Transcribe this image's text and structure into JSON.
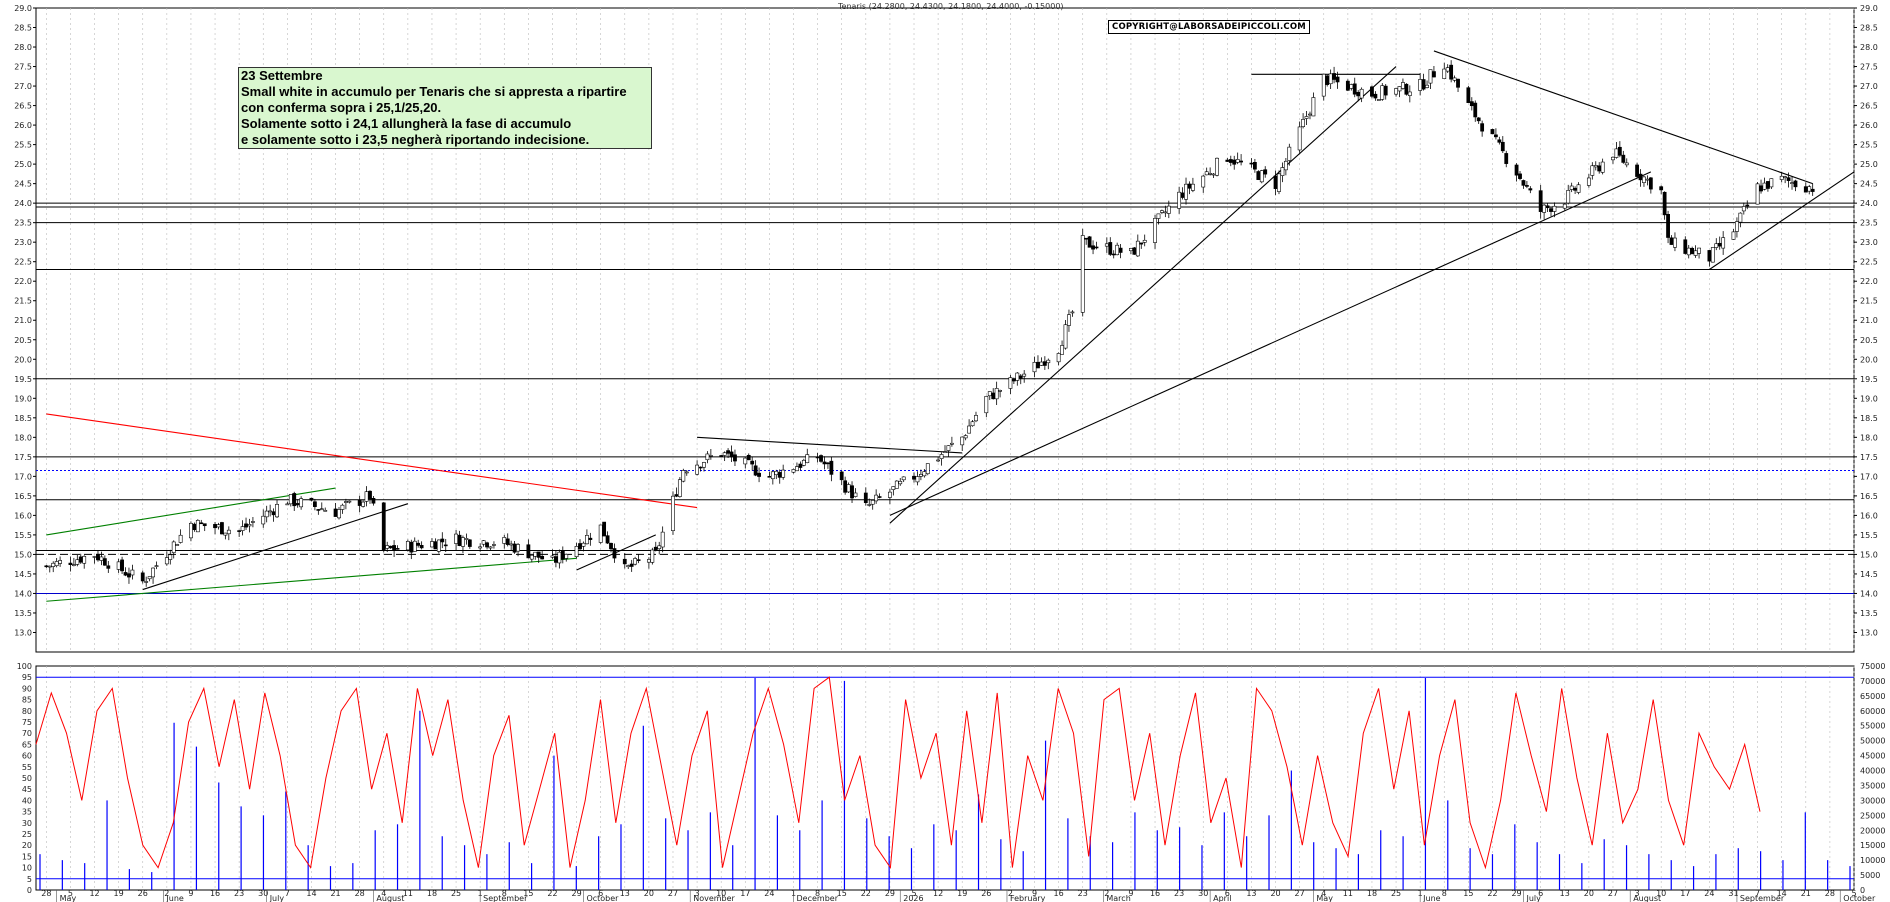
{
  "chart_data": [
    {
      "type": "candlestick",
      "header": "Tenaris (24.2800, 24.4300, 24.1800, 24.4000, -0.15000)",
      "copyright": "COPYRIGHT@LABORSADEIPICCOLI.COM",
      "annotation": [
        "23 Settembre",
        "Small white in accumulo per Tenaris che si appresta a ripartire",
        "con conferma sopra i 25,1/25,20.",
        "Solamente sotto i 24,1 allungherà la fase di accumulo",
        "e solamente sotto i 23,5 negherà riportando indecisione."
      ],
      "ylim": [
        12.5,
        29.0
      ],
      "yticks": [
        "29.0",
        "28.5",
        "28.0",
        "27.5",
        "27.0",
        "26.5",
        "26.0",
        "25.5",
        "25.0",
        "24.5",
        "24.0",
        "23.5",
        "23.0",
        "22.5",
        "22.0",
        "21.5",
        "21.0",
        "20.5",
        "20.0",
        "19.5",
        "19.0",
        "18.5",
        "18.0",
        "17.5",
        "17.0",
        "16.5",
        "16.0",
        "15.5",
        "15.0",
        "14.5",
        "14.0",
        "13.5",
        "13.0"
      ],
      "last": {
        "open": 24.28,
        "high": 24.43,
        "low": 24.18,
        "close": 24.4,
        "change": -0.15
      },
      "horizontal_levels": [
        24.0,
        23.9,
        23.5,
        22.3,
        19.5,
        17.5,
        16.4,
        15.1,
        14.0
      ],
      "dotted_level": 17.15,
      "dashed_level": 15.0,
      "price_path": [
        [
          "2025-04-28",
          14.7
        ],
        [
          "2025-05-12",
          15.0
        ],
        [
          "2025-05-26",
          14.3
        ],
        [
          "2025-06-09",
          15.8
        ],
        [
          "2025-06-23",
          15.6
        ],
        [
          "2025-07-07",
          16.4
        ],
        [
          "2025-07-21",
          16.1
        ],
        [
          "2025-07-31",
          16.5
        ],
        [
          "2025-08-04",
          15.1
        ],
        [
          "2025-08-25",
          15.4
        ],
        [
          "2025-09-08",
          15.3
        ],
        [
          "2025-09-22",
          14.8
        ],
        [
          "2025-10-06",
          15.7
        ],
        [
          "2025-10-13",
          14.6
        ],
        [
          "2025-10-22",
          15.0
        ],
        [
          "2025-10-30",
          17.2
        ],
        [
          "2025-11-10",
          17.6
        ],
        [
          "2025-11-24",
          17.0
        ],
        [
          "2025-12-08",
          17.5
        ],
        [
          "2025-12-22",
          16.2
        ],
        [
          "2026-01-05",
          17.0
        ],
        [
          "2026-01-19",
          18.0
        ],
        [
          "2026-01-26",
          19.0
        ],
        [
          "2026-02-09",
          19.8
        ],
        [
          "2026-02-16",
          20.3
        ],
        [
          "2026-02-20",
          21.2
        ],
        [
          "2026-02-23",
          23.0
        ],
        [
          "2026-03-09",
          22.7
        ],
        [
          "2026-03-23",
          24.2
        ],
        [
          "2026-04-06",
          25.2
        ],
        [
          "2026-04-20",
          24.5
        ],
        [
          "2026-05-04",
          27.2
        ],
        [
          "2026-05-18",
          26.8
        ],
        [
          "2026-06-01",
          27.0
        ],
        [
          "2026-06-08",
          27.6
        ],
        [
          "2026-06-15",
          26.5
        ],
        [
          "2026-06-29",
          24.8
        ],
        [
          "2026-07-06",
          23.8
        ],
        [
          "2026-07-13",
          24.1
        ],
        [
          "2026-07-27",
          25.3
        ],
        [
          "2026-08-10",
          24.3
        ],
        [
          "2026-08-12",
          23.0
        ],
        [
          "2026-08-24",
          22.6
        ],
        [
          "2026-08-31",
          23.3
        ],
        [
          "2026-09-07",
          24.4
        ],
        [
          "2026-09-14",
          24.6
        ],
        [
          "2026-09-23",
          24.4
        ]
      ],
      "trendlines": [
        {
          "color": "#ff0000",
          "from": [
            "2025-04-28",
            18.6
          ],
          "to": [
            "2025-11-03",
            16.2
          ]
        },
        {
          "color": "#008000",
          "from": [
            "2025-04-28",
            15.5
          ],
          "to": [
            "2025-07-21",
            16.7
          ]
        },
        {
          "color": "#008000",
          "from": [
            "2025-04-28",
            13.8
          ],
          "to": [
            "2025-09-29",
            14.9
          ]
        },
        {
          "color": "#000000",
          "from": [
            "2025-05-26",
            14.1
          ],
          "to": [
            "2025-08-11",
            16.3
          ]
        },
        {
          "color": "#000000",
          "from": [
            "2025-09-29",
            14.6
          ],
          "to": [
            "2025-10-22",
            15.5
          ]
        },
        {
          "color": "#000000",
          "from": [
            "2025-11-03",
            18.0
          ],
          "to": [
            "2026-01-19",
            17.6
          ]
        },
        {
          "color": "#000000",
          "from": [
            "2025-12-29",
            15.8
          ],
          "to": [
            "2026-05-25",
            27.5
          ]
        },
        {
          "color": "#000000",
          "from": [
            "2025-12-29",
            16.0
          ],
          "to": [
            "2026-08-07",
            24.8
          ]
        },
        {
          "color": "#000000",
          "from": [
            "2026-04-13",
            27.3
          ],
          "to": [
            "2026-06-01",
            27.3
          ]
        },
        {
          "color": "#000000",
          "from": [
            "2026-06-05",
            27.9
          ],
          "to": [
            "2026-09-23",
            24.5
          ]
        },
        {
          "color": "#000000",
          "from": [
            "2026-08-24",
            22.3
          ],
          "to": [
            "2026-10-05",
            24.8
          ]
        }
      ],
      "x_day_labels": [
        "28",
        "5",
        "12",
        "19",
        "26",
        "2",
        "9",
        "16",
        "23",
        "30",
        "7",
        "14",
        "21",
        "28",
        "4",
        "11",
        "18",
        "25",
        "1",
        "8",
        "15",
        "22",
        "29",
        "6",
        "13",
        "20",
        "27",
        "3",
        "10",
        "17",
        "24",
        "1",
        "8",
        "15",
        "22",
        "29",
        "5",
        "12",
        "19",
        "26",
        "2",
        "9",
        "16",
        "23",
        "2",
        "9",
        "16",
        "23",
        "30",
        "6",
        "13",
        "20",
        "27",
        "4",
        "11",
        "18",
        "25",
        "1",
        "8",
        "15",
        "22",
        "29",
        "6",
        "13",
        "20",
        "27",
        "3",
        "10",
        "17",
        "24",
        "31",
        "7",
        "14",
        "21",
        "28",
        "5"
      ],
      "x_month_labels": [
        "May",
        "June",
        "July",
        "August",
        "September",
        "October",
        "November",
        "December",
        "2026",
        "February",
        "March",
        "April",
        "May",
        "June",
        "July",
        "August",
        "September",
        "October"
      ]
    },
    {
      "type": "bar+line",
      "y_left_ticks": [
        "100",
        "95",
        "90",
        "85",
        "80",
        "75",
        "70",
        "65",
        "60",
        "55",
        "50",
        "45",
        "40",
        "35",
        "30",
        "25",
        "20",
        "15",
        "10",
        "5",
        "0"
      ],
      "y_right_ticks": [
        "75000",
        "70000",
        "65000",
        "60000",
        "55000",
        "50000",
        "45000",
        "40000",
        "35000",
        "30000",
        "25000",
        "20000",
        "15000",
        "10000",
        "5000",
        "0"
      ],
      "oscillator_ylim": [
        0,
        100
      ],
      "volume_ylim": [
        0,
        75000
      ],
      "oscillator_levels": [
        95,
        5
      ],
      "series": [
        {
          "kind": "line",
          "color": "#ff0000",
          "values": [
            65,
            88,
            70,
            40,
            80,
            90,
            50,
            20,
            10,
            30,
            75,
            90,
            55,
            85,
            45,
            88,
            60,
            20,
            10,
            50,
            80,
            90,
            45,
            70,
            30,
            90,
            60,
            85,
            40,
            10,
            60,
            78,
            20,
            45,
            70,
            10,
            40,
            85,
            30,
            70,
            90,
            55,
            20,
            60,
            80,
            10,
            40,
            70,
            90,
            65,
            30,
            90,
            95,
            40,
            60,
            20,
            10,
            85,
            50,
            70,
            20,
            80,
            30,
            88,
            10,
            60,
            40,
            90,
            70,
            15,
            85,
            90,
            40,
            70,
            20,
            60,
            88,
            30,
            50,
            10,
            90,
            80,
            55,
            20,
            60,
            30,
            15,
            70,
            90,
            45,
            80,
            20,
            60,
            85,
            30,
            10,
            40,
            88,
            60,
            35,
            90,
            50,
            20,
            70,
            30,
            45,
            85,
            40,
            20,
            70,
            55,
            45,
            65,
            35
          ]
        },
        {
          "kind": "bar",
          "color": "#0000ff",
          "values": [
            12000,
            10000,
            9000,
            30000,
            7000,
            6000,
            56000,
            48000,
            36000,
            28000,
            25000,
            33000,
            15000,
            8000,
            9000,
            20000,
            22000,
            60000,
            18000,
            15000,
            12000,
            16000,
            9000,
            45000,
            8000,
            18000,
            22000,
            55000,
            24000,
            20000,
            26000,
            15000,
            71000,
            25000,
            20000,
            30000,
            70000,
            24000,
            18000,
            14000,
            22000,
            20000,
            32000,
            17000,
            13000,
            50000,
            24000,
            18000,
            16000,
            26000,
            20000,
            21000,
            15000,
            26000,
            18000,
            25000,
            40000,
            16000,
            14000,
            12000,
            20000,
            18000,
            71000,
            30000,
            14000,
            12000,
            22000,
            16000,
            12000,
            9000,
            17000,
            15000,
            12000,
            10000,
            8000,
            12000,
            14000,
            13000,
            10000,
            26000,
            10000,
            8000
          ]
        }
      ]
    }
  ]
}
